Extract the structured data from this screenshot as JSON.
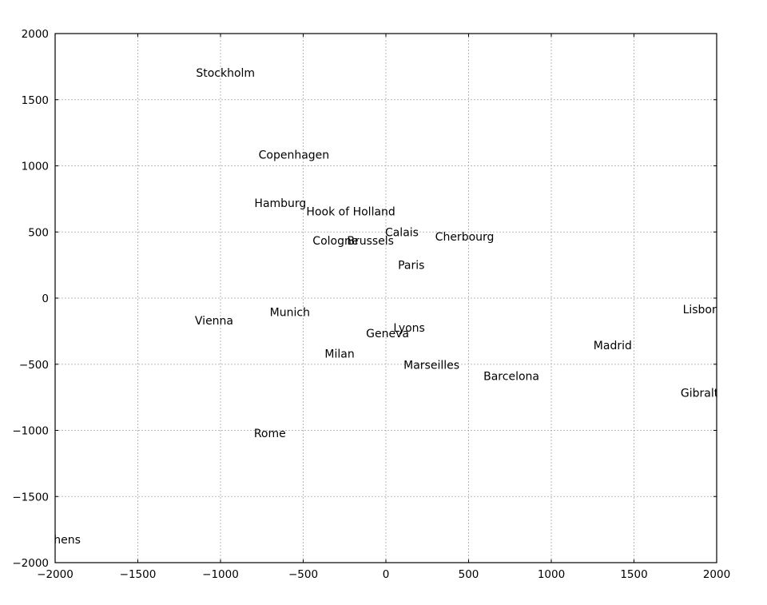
{
  "chart_data": {
    "type": "scatter",
    "title": "",
    "xlabel": "",
    "ylabel": "",
    "xlim": [
      -2000,
      2000
    ],
    "ylim": [
      -2000,
      2000
    ],
    "grid": true,
    "x_ticks": [
      -2000,
      -1500,
      -1000,
      -500,
      0,
      500,
      1000,
      1500,
      2000
    ],
    "y_ticks": [
      -2000,
      -1500,
      -1000,
      -500,
      0,
      500,
      1000,
      1500,
      2000
    ],
    "x_tick_labels": [
      "−2000",
      "−1500",
      "−1000",
      "−500",
      "0",
      "500",
      "1000",
      "1500",
      "2000"
    ],
    "y_tick_labels": [
      "−2000",
      "−1500",
      "−1000",
      "−500",
      "0",
      "500",
      "1000",
      "1500",
      "2000"
    ],
    "points": [
      {
        "label": "Stockholm",
        "x": -1148,
        "y": 1705
      },
      {
        "label": "Copenhagen",
        "x": -770,
        "y": 1085
      },
      {
        "label": "Hamburg",
        "x": -795,
        "y": 718
      },
      {
        "label": "Hook of Holland",
        "x": -481,
        "y": 655
      },
      {
        "label": "Calais",
        "x": -5,
        "y": 500
      },
      {
        "label": "Cherbourg",
        "x": 298,
        "y": 465
      },
      {
        "label": "Cologne",
        "x": -443,
        "y": 435
      },
      {
        "label": "Brussels",
        "x": -235,
        "y": 435
      },
      {
        "label": "Paris",
        "x": 73,
        "y": 250
      },
      {
        "label": "Lisbon",
        "x": 1795,
        "y": -85
      },
      {
        "label": "Munich",
        "x": -702,
        "y": -105
      },
      {
        "label": "Vienna",
        "x": -1155,
        "y": -170
      },
      {
        "label": "Lyons",
        "x": 45,
        "y": -225
      },
      {
        "label": "Geneva",
        "x": -120,
        "y": -265
      },
      {
        "label": "Madrid",
        "x": 1255,
        "y": -355
      },
      {
        "label": "Milan",
        "x": -370,
        "y": -420
      },
      {
        "label": "Marseilles",
        "x": 107,
        "y": -505
      },
      {
        "label": "Barcelona",
        "x": 590,
        "y": -590
      },
      {
        "label": "Gibraltar",
        "x": 1782,
        "y": -715
      },
      {
        "label": "Rome",
        "x": -798,
        "y": -1020
      },
      {
        "label": "Athens",
        "x": -2080,
        "y": -1825
      }
    ]
  }
}
